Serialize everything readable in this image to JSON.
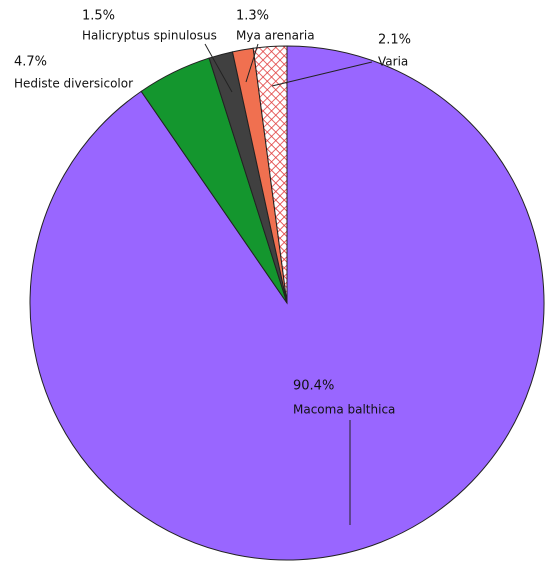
{
  "chart_data": {
    "type": "pie",
    "categories": [
      "Macoma balthica",
      "Hediste diversicolor",
      "Halicryptus spinulosus",
      "Mya arenaria",
      "Varia"
    ],
    "values": [
      90.4,
      4.7,
      1.5,
      1.3,
      2.1
    ],
    "value_labels": [
      "90.4%",
      "4.7%",
      "1.5%",
      "1.3%",
      "2.1%"
    ],
    "colors": [
      "#9966ff",
      "#14962e",
      "#404040",
      "#f07050",
      "#e03c3c"
    ],
    "hatched": [
      false,
      false,
      false,
      false,
      true
    ]
  }
}
